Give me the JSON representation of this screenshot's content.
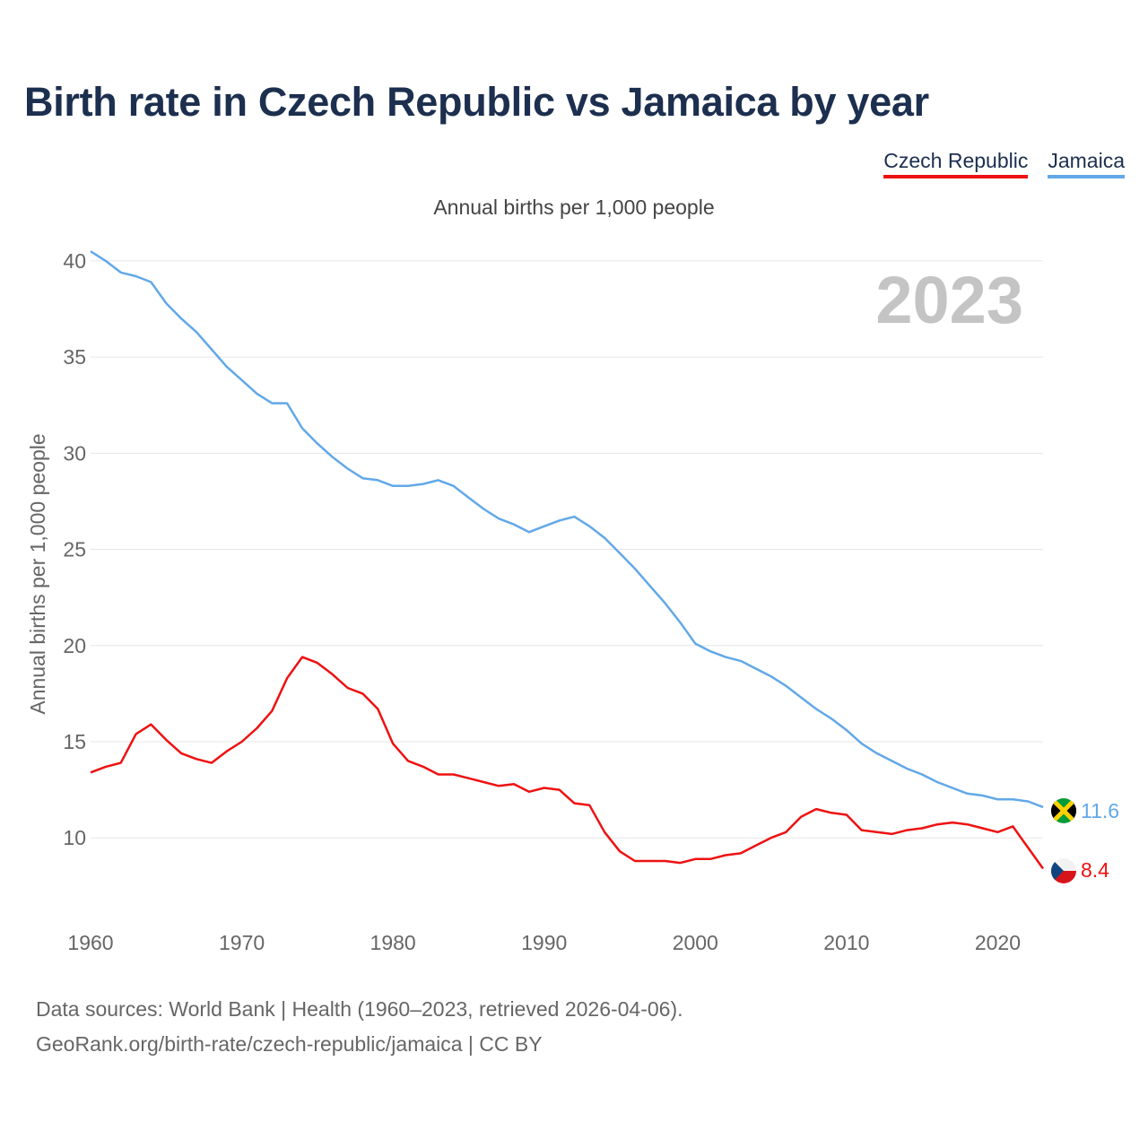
{
  "title": "Birth rate in Czech Republic vs Jamaica by year",
  "subtitle": "Annual births per 1,000 people",
  "legend": [
    {
      "label": "Czech Republic",
      "color": "#ee1111"
    },
    {
      "label": "Jamaica",
      "color": "#62a8e8"
    }
  ],
  "year_watermark": "2023",
  "footer": {
    "line1": "Data sources: World Bank | Health (1960–2023, retrieved 2026-04-06).",
    "line2": "GeoRank.org/birth-rate/czech-republic/jamaica | CC BY"
  },
  "chart_data": {
    "type": "line",
    "title": "Birth rate in Czech Republic vs Jamaica by year",
    "xlabel": "",
    "ylabel": "Annual births per 1,000 people",
    "xlim": [
      1960,
      2023
    ],
    "ylim": [
      6,
      42
    ],
    "xticks": [
      1960,
      1970,
      1980,
      1990,
      2000,
      2010,
      2020
    ],
    "yticks": [
      10,
      15,
      20,
      25,
      30,
      35,
      40
    ],
    "grid": true,
    "legend_position": "top-right",
    "x": [
      1960,
      1961,
      1962,
      1963,
      1964,
      1965,
      1966,
      1967,
      1968,
      1969,
      1970,
      1971,
      1972,
      1973,
      1974,
      1975,
      1976,
      1977,
      1978,
      1979,
      1980,
      1981,
      1982,
      1983,
      1984,
      1985,
      1986,
      1987,
      1988,
      1989,
      1990,
      1991,
      1992,
      1993,
      1994,
      1995,
      1996,
      1997,
      1998,
      1999,
      2000,
      2001,
      2002,
      2003,
      2004,
      2005,
      2006,
      2007,
      2008,
      2009,
      2010,
      2011,
      2012,
      2013,
      2014,
      2015,
      2016,
      2017,
      2018,
      2019,
      2020,
      2021,
      2022,
      2023
    ],
    "series": [
      {
        "name": "Jamaica",
        "color": "#62a8e8",
        "end_label": "11.6",
        "values": [
          40.5,
          40.0,
          39.4,
          39.2,
          38.9,
          37.8,
          37.0,
          36.3,
          35.4,
          34.5,
          33.8,
          33.1,
          32.6,
          32.6,
          31.3,
          30.5,
          29.8,
          29.2,
          28.7,
          28.6,
          28.3,
          28.3,
          28.4,
          28.6,
          28.3,
          27.7,
          27.1,
          26.6,
          26.3,
          25.9,
          26.2,
          26.5,
          26.7,
          26.2,
          25.6,
          24.8,
          24.0,
          23.1,
          22.2,
          21.2,
          20.1,
          19.7,
          19.4,
          19.2,
          18.8,
          18.4,
          17.9,
          17.3,
          16.7,
          16.2,
          15.6,
          14.9,
          14.4,
          14.0,
          13.6,
          13.3,
          12.9,
          12.6,
          12.3,
          12.2,
          12.0,
          12.0,
          11.9,
          11.6
        ]
      },
      {
        "name": "Czech Republic",
        "color": "#ee1111",
        "end_label": "8.4",
        "values": [
          13.4,
          13.7,
          13.9,
          15.4,
          15.9,
          15.1,
          14.4,
          14.1,
          13.9,
          14.5,
          15.0,
          15.7,
          16.6,
          18.3,
          19.4,
          19.1,
          18.5,
          17.8,
          17.5,
          16.7,
          14.9,
          14.0,
          13.7,
          13.3,
          13.3,
          13.1,
          12.9,
          12.7,
          12.8,
          12.4,
          12.6,
          12.5,
          11.8,
          11.7,
          10.3,
          9.3,
          8.8,
          8.8,
          8.8,
          8.7,
          8.9,
          8.9,
          9.1,
          9.2,
          9.6,
          10.0,
          10.3,
          11.1,
          11.5,
          11.3,
          11.2,
          10.4,
          10.3,
          10.2,
          10.4,
          10.5,
          10.7,
          10.8,
          10.7,
          10.5,
          10.3,
          10.6,
          9.5,
          8.4
        ]
      }
    ]
  }
}
